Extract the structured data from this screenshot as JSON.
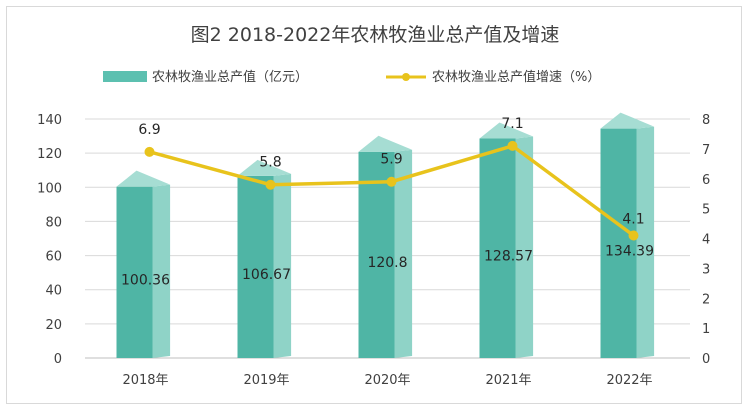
{
  "chart_data": {
    "type": "bar",
    "title": "图2  2018-2022年农林牧渔业总产值及增速",
    "categories": [
      "2018年",
      "2019年",
      "2020年",
      "2021年",
      "2022年"
    ],
    "series": [
      {
        "name": "农林牧渔业总产值（亿元）",
        "type": "bar",
        "axis": "left",
        "values": [
          100.36,
          106.67,
          120.8,
          128.57,
          134.39
        ],
        "labels": [
          "100.36",
          "106.67",
          "120.8",
          "128.57",
          "134.39"
        ],
        "color": "#5cc0b0"
      },
      {
        "name": "农林牧渔业总产值增速（%）",
        "type": "line",
        "axis": "right",
        "values": [
          6.9,
          5.8,
          5.9,
          7.1,
          4.1
        ],
        "labels": [
          "6.9",
          "5.8",
          "5.9",
          "7.1",
          "4.1"
        ],
        "color": "#e8c31c"
      }
    ],
    "y_left": {
      "min": 0,
      "max": 140,
      "ticks": [
        "0",
        "20",
        "40",
        "60",
        "80",
        "100",
        "120",
        "140"
      ]
    },
    "y_right": {
      "min": 0,
      "max": 8,
      "ticks": [
        "0",
        "1",
        "2",
        "3",
        "4",
        "5",
        "6",
        "7",
        "8"
      ]
    },
    "grid": true,
    "legend": "top-center"
  }
}
